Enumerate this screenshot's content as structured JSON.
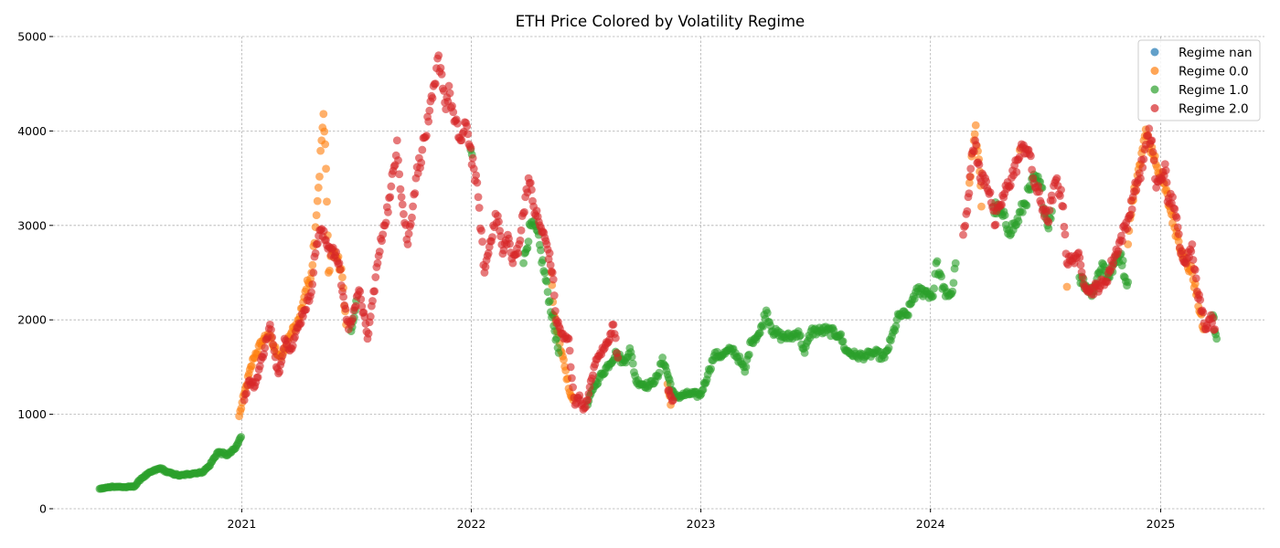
{
  "chart_data": {
    "type": "scatter",
    "title": "ETH Price Colored by Volatility Regime",
    "xlabel": "",
    "ylabel": "",
    "ylim": [
      0,
      5000
    ],
    "xlim": [
      "2020-03-07",
      "2025-06-15"
    ],
    "x_ticks": [
      "2021",
      "2022",
      "2023",
      "2024",
      "2025"
    ],
    "y_ticks": [
      0,
      1000,
      2000,
      3000,
      4000,
      5000
    ],
    "grid": true,
    "legend_position": "top-right",
    "series": [
      {
        "name": "Regime nan",
        "color": "#1f77b4",
        "anchors": []
      },
      {
        "name": "Regime 0.0",
        "color": "#ff7f0e",
        "anchors": [
          [
            "2020-12-28",
            980
          ],
          [
            "2021-01-08",
            1300
          ],
          [
            "2021-01-20",
            1600
          ],
          [
            "2021-02-05",
            1800
          ],
          [
            "2021-02-12",
            1850
          ],
          [
            "2021-02-22",
            1700
          ],
          [
            "2021-03-05",
            1600
          ],
          [
            "2021-03-20",
            1850
          ],
          [
            "2021-04-02",
            2000
          ],
          [
            "2021-04-12",
            2300
          ],
          [
            "2021-04-22",
            2500
          ],
          [
            "2021-05-03",
            3400
          ],
          [
            "2021-05-08",
            3900
          ],
          [
            "2021-05-11",
            4180
          ],
          [
            "2021-05-15",
            3600
          ],
          [
            "2021-05-19",
            2500
          ],
          [
            "2021-05-24",
            2750
          ],
          [
            "2021-06-02",
            2650
          ],
          [
            "2021-06-10",
            2450
          ],
          [
            "2021-06-16",
            1950
          ],
          [
            "2022-05-08",
            2500
          ],
          [
            "2022-05-12",
            2050
          ],
          [
            "2022-06-08",
            1200
          ],
          [
            "2022-06-12",
            1150
          ],
          [
            "2022-11-09",
            1320
          ],
          [
            "2022-11-14",
            1100
          ],
          [
            "2024-03-03",
            3450
          ],
          [
            "2024-03-10",
            3900
          ],
          [
            "2024-03-13",
            4060
          ],
          [
            "2024-03-18",
            3700
          ],
          [
            "2024-03-22",
            3200
          ],
          [
            "2024-05-22",
            3800
          ],
          [
            "2024-08-05",
            2350
          ],
          [
            "2024-11-10",
            2800
          ],
          [
            "2024-11-20",
            3400
          ],
          [
            "2024-11-30",
            3650
          ],
          [
            "2024-12-05",
            3900
          ],
          [
            "2024-12-10",
            3950
          ],
          [
            "2025-01-05",
            3450
          ],
          [
            "2025-01-15",
            3200
          ],
          [
            "2025-01-28",
            2880
          ],
          [
            "2025-02-10",
            2600
          ],
          [
            "2025-02-20",
            2500
          ],
          [
            "2025-03-10",
            1900
          ]
        ]
      },
      {
        "name": "Regime 1.0",
        "color": "#2ca02c",
        "anchors": [
          [
            "2020-05-20",
            210
          ],
          [
            "2020-06-10",
            235
          ],
          [
            "2020-07-01",
            228
          ],
          [
            "2020-07-15",
            238
          ],
          [
            "2020-07-25",
            320
          ],
          [
            "2020-08-10",
            390
          ],
          [
            "2020-08-25",
            430
          ],
          [
            "2020-09-05",
            385
          ],
          [
            "2020-09-25",
            350
          ],
          [
            "2020-10-15",
            375
          ],
          [
            "2020-10-30",
            385
          ],
          [
            "2020-11-10",
            450
          ],
          [
            "2020-11-24",
            600
          ],
          [
            "2020-12-10",
            570
          ],
          [
            "2020-12-22",
            640
          ],
          [
            "2020-12-31",
            760
          ],
          [
            "2021-06-24",
            1880
          ],
          [
            "2021-07-02",
            2200
          ],
          [
            "2021-12-31",
            3800
          ],
          [
            "2022-01-02",
            3750
          ],
          [
            "2022-03-25",
            2600
          ],
          [
            "2022-04-05",
            3000
          ],
          [
            "2022-04-15",
            2950
          ],
          [
            "2022-05-20",
            1650
          ],
          [
            "2022-07-05",
            1100
          ],
          [
            "2022-07-15",
            1300
          ],
          [
            "2022-08-20",
            1650
          ],
          [
            "2022-08-30",
            1550
          ],
          [
            "2022-09-05",
            1600
          ],
          [
            "2022-09-10",
            1700
          ],
          [
            "2022-09-20",
            1350
          ],
          [
            "2022-10-10",
            1300
          ],
          [
            "2022-10-25",
            1400
          ],
          [
            "2022-11-01",
            1600
          ],
          [
            "2022-11-20",
            1180
          ],
          [
            "2022-12-15",
            1220
          ],
          [
            "2022-12-31",
            1200
          ],
          [
            "2023-01-12",
            1420
          ],
          [
            "2023-01-22",
            1620
          ],
          [
            "2023-02-05",
            1630
          ],
          [
            "2023-02-20",
            1690
          ],
          [
            "2023-03-05",
            1560
          ],
          [
            "2023-03-12",
            1450
          ],
          [
            "2023-03-22",
            1780
          ],
          [
            "2023-04-05",
            1860
          ],
          [
            "2023-04-15",
            2100
          ],
          [
            "2023-04-25",
            1880
          ],
          [
            "2023-05-10",
            1820
          ],
          [
            "2023-05-25",
            1820
          ],
          [
            "2023-06-05",
            1880
          ],
          [
            "2023-06-15",
            1650
          ],
          [
            "2023-06-25",
            1880
          ],
          [
            "2023-07-10",
            1880
          ],
          [
            "2023-07-20",
            1890
          ],
          [
            "2023-08-10",
            1840
          ],
          [
            "2023-08-20",
            1670
          ],
          [
            "2023-09-05",
            1620
          ],
          [
            "2023-09-20",
            1620
          ],
          [
            "2023-10-05",
            1650
          ],
          [
            "2023-10-20",
            1600
          ],
          [
            "2023-10-30",
            1780
          ],
          [
            "2023-11-12",
            2050
          ],
          [
            "2023-11-25",
            2050
          ],
          [
            "2023-12-05",
            2250
          ],
          [
            "2023-12-12",
            2300
          ],
          [
            "2023-12-25",
            2300
          ],
          [
            "2024-01-05",
            2250
          ],
          [
            "2024-01-10",
            2600
          ],
          [
            "2024-01-15",
            2500
          ],
          [
            "2024-01-25",
            2250
          ],
          [
            "2024-02-05",
            2300
          ],
          [
            "2024-02-10",
            2600
          ],
          [
            "2024-04-10",
            3200
          ],
          [
            "2024-04-25",
            3100
          ],
          [
            "2024-05-05",
            2950
          ],
          [
            "2024-05-15",
            3000
          ],
          [
            "2024-06-15",
            3500
          ],
          [
            "2024-06-25",
            3400
          ],
          [
            "2024-07-05",
            3000
          ],
          [
            "2024-07-12",
            3150
          ],
          [
            "2024-08-25",
            2450
          ],
          [
            "2024-09-05",
            2350
          ],
          [
            "2024-09-15",
            2300
          ],
          [
            "2024-09-30",
            2600
          ],
          [
            "2024-10-10",
            2450
          ],
          [
            "2024-10-20",
            2600
          ],
          [
            "2024-10-30",
            2700
          ],
          [
            "2024-11-05",
            2450
          ],
          [
            "2024-11-10",
            2400
          ],
          [
            "2025-03-25",
            2050
          ],
          [
            "2025-03-31",
            1800
          ]
        ]
      },
      {
        "name": "Regime 2.0",
        "color": "#d62728",
        "anchors": [
          [
            "2021-01-05",
            1150
          ],
          [
            "2021-01-12",
            1350
          ],
          [
            "2021-01-22",
            1300
          ],
          [
            "2021-02-10",
            1800
          ],
          [
            "2021-02-15",
            1950
          ],
          [
            "2021-02-25",
            1500
          ],
          [
            "2021-03-02",
            1450
          ],
          [
            "2021-03-10",
            1800
          ],
          [
            "2021-03-20",
            1700
          ],
          [
            "2021-04-10",
            2100
          ],
          [
            "2021-04-20",
            2250
          ],
          [
            "2021-04-30",
            2800
          ],
          [
            "2021-05-05",
            2950
          ],
          [
            "2021-06-05",
            2600
          ],
          [
            "2021-06-10",
            2300
          ],
          [
            "2021-06-20",
            1900
          ],
          [
            "2021-06-28",
            2100
          ],
          [
            "2021-07-08",
            2300
          ],
          [
            "2021-07-20",
            1800
          ],
          [
            "2021-07-28",
            2200
          ],
          [
            "2021-08-05",
            2600
          ],
          [
            "2021-08-15",
            3000
          ],
          [
            "2021-08-25",
            3300
          ],
          [
            "2021-09-05",
            3900
          ],
          [
            "2021-09-12",
            3300
          ],
          [
            "2021-09-22",
            2800
          ],
          [
            "2021-10-05",
            3500
          ],
          [
            "2021-10-15",
            3800
          ],
          [
            "2021-10-25",
            4100
          ],
          [
            "2021-11-05",
            4500
          ],
          [
            "2021-11-10",
            4800
          ],
          [
            "2021-11-15",
            4600
          ],
          [
            "2021-11-20",
            4300
          ],
          [
            "2021-11-28",
            4400
          ],
          [
            "2021-12-05",
            4100
          ],
          [
            "2021-12-15",
            3900
          ],
          [
            "2021-12-25",
            4050
          ],
          [
            "2022-01-05",
            3600
          ],
          [
            "2022-01-12",
            3300
          ],
          [
            "2022-01-22",
            2500
          ],
          [
            "2022-02-05",
            3000
          ],
          [
            "2022-02-12",
            3100
          ],
          [
            "2022-02-20",
            2700
          ],
          [
            "2022-02-28",
            2900
          ],
          [
            "2022-03-08",
            2600
          ],
          [
            "2022-03-18",
            2800
          ],
          [
            "2022-03-28",
            3300
          ],
          [
            "2022-04-02",
            3500
          ],
          [
            "2022-04-10",
            3200
          ],
          [
            "2022-04-20",
            3000
          ],
          [
            "2022-05-01",
            2800
          ],
          [
            "2022-05-10",
            2500
          ],
          [
            "2022-05-16",
            2000
          ],
          [
            "2022-05-28",
            1800
          ],
          [
            "2022-06-05",
            1800
          ],
          [
            "2022-06-08",
            1500
          ],
          [
            "2022-06-15",
            1100
          ],
          [
            "2022-06-22",
            1200
          ],
          [
            "2022-06-28",
            1050
          ],
          [
            "2022-07-05",
            1150
          ],
          [
            "2022-07-15",
            1500
          ],
          [
            "2022-07-25",
            1650
          ],
          [
            "2022-08-01",
            1700
          ],
          [
            "2022-08-10",
            1850
          ],
          [
            "2022-08-15",
            1950
          ],
          [
            "2022-08-22",
            1600
          ],
          [
            "2022-11-10",
            1250
          ],
          [
            "2022-11-18",
            1150
          ],
          [
            "2024-02-22",
            2900
          ],
          [
            "2024-03-01",
            3300
          ],
          [
            "2024-03-05",
            3600
          ],
          [
            "2024-03-12",
            3900
          ],
          [
            "2024-03-20",
            3500
          ],
          [
            "2024-03-28",
            3500
          ],
          [
            "2024-04-05",
            3350
          ],
          [
            "2024-04-12",
            3000
          ],
          [
            "2024-04-20",
            3200
          ],
          [
            "2024-05-20",
            3700
          ],
          [
            "2024-05-28",
            3850
          ],
          [
            "2024-06-05",
            3800
          ],
          [
            "2024-06-12",
            3500
          ],
          [
            "2024-07-05",
            3050
          ],
          [
            "2024-07-20",
            3500
          ],
          [
            "2024-07-30",
            3200
          ],
          [
            "2024-08-05",
            2600
          ],
          [
            "2024-08-15",
            2650
          ],
          [
            "2024-08-22",
            2700
          ],
          [
            "2024-08-30",
            2450
          ],
          [
            "2024-09-10",
            2300
          ],
          [
            "2024-10-05",
            2400
          ],
          [
            "2024-11-12",
            3100
          ],
          [
            "2024-11-18",
            3300
          ],
          [
            "2024-11-25",
            3450
          ],
          [
            "2024-12-05",
            3700
          ],
          [
            "2024-12-12",
            3950
          ],
          [
            "2024-12-18",
            3900
          ],
          [
            "2024-12-25",
            3400
          ],
          [
            "2025-01-02",
            3500
          ],
          [
            "2025-01-08",
            3650
          ],
          [
            "2025-01-12",
            3250
          ],
          [
            "2025-01-20",
            3300
          ],
          [
            "2025-01-25",
            3100
          ],
          [
            "2025-02-02",
            2700
          ],
          [
            "2025-02-12",
            2650
          ],
          [
            "2025-02-20",
            2800
          ],
          [
            "2025-02-28",
            2300
          ],
          [
            "2025-03-08",
            2100
          ],
          [
            "2025-03-14",
            1900
          ],
          [
            "2025-03-22",
            2050
          ],
          [
            "2025-03-28",
            1900
          ]
        ]
      }
    ]
  }
}
